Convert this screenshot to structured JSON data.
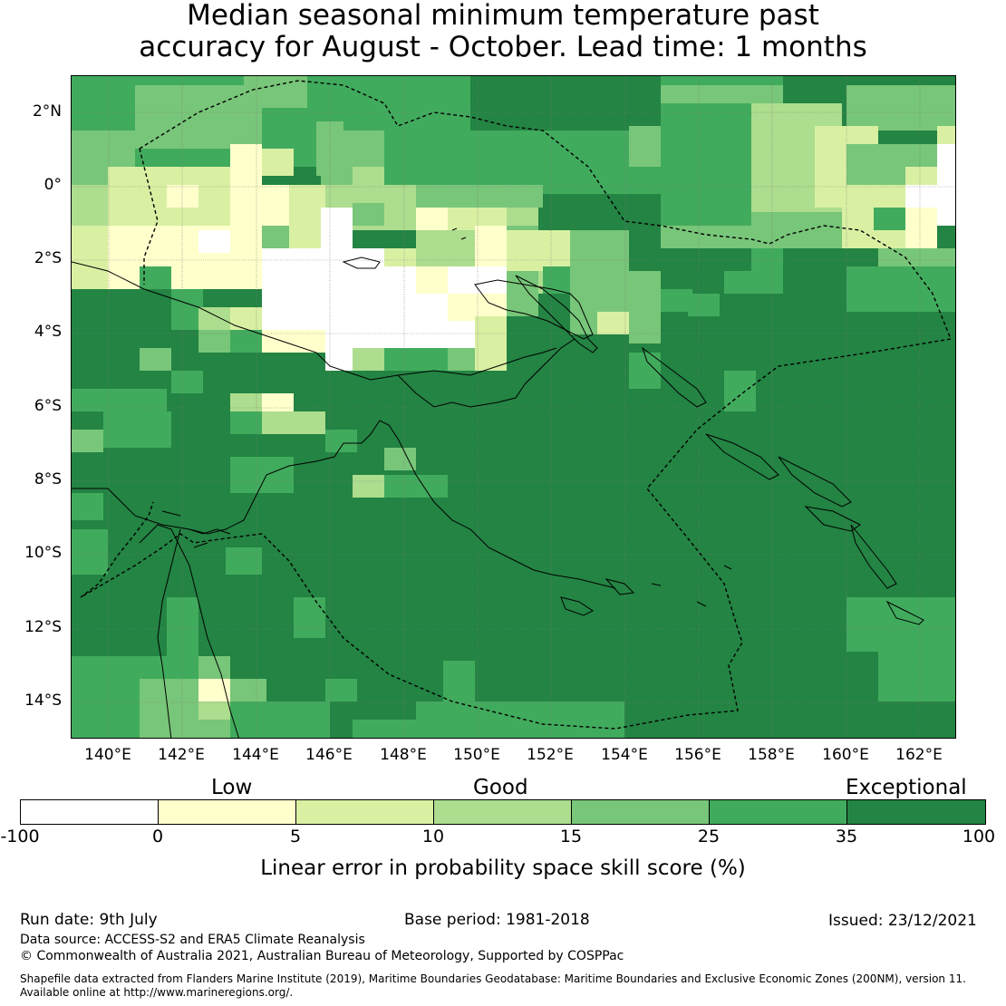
{
  "title": {
    "line1": "Median seasonal minimum temperature past",
    "line2": "accuracy for August - October. Lead time: 1 months"
  },
  "map": {
    "y_axis_labels": [
      "2°N",
      "0°",
      "2°S",
      "4°S",
      "6°S",
      "8°S",
      "10°S",
      "12°S",
      "14°S"
    ],
    "x_axis_labels": [
      "140°E",
      "142°E",
      "144°E",
      "146°E",
      "148°E",
      "150°E",
      "152°E",
      "154°E",
      "156°E",
      "158°E",
      "160°E",
      "162°E"
    ],
    "lat_range": [
      -15,
      3
    ],
    "lon_range": [
      139,
      163
    ],
    "dominant_category": "Exceptional"
  },
  "colorbar": {
    "categories": [
      "Low",
      "Good",
      "Exceptional"
    ],
    "ticks": [
      "-100",
      "0",
      "5",
      "10",
      "15",
      "25",
      "35",
      "100"
    ],
    "colors": [
      "#ffffff",
      "#ffffcc",
      "#d9f0a3",
      "#addd8e",
      "#78c679",
      "#41ab5d",
      "#238443"
    ],
    "label": "Linear error in probability space skill score (%)"
  },
  "footer": {
    "run_date": "Run date: 9th July",
    "base_period": "Base period: 1981-2018",
    "issued": "Issued: 23/12/2021",
    "data_source": "Data source: ACCESS-S2 and ERA5 Climate Reanalysis",
    "copyright": "© Commonwealth of Australia 2021, Australian Bureau of Meteorology, Supported by COSPPac",
    "shapefile_line1": "Shapefile data extracted from Flanders Marine Institute (2019), Maritime Boundaries Geodatabase: Maritime Boundaries and Exclusive Economic Zones (200NM), version 11.",
    "shapefile_line2": "Available online at http://www.marineregions.org/."
  }
}
